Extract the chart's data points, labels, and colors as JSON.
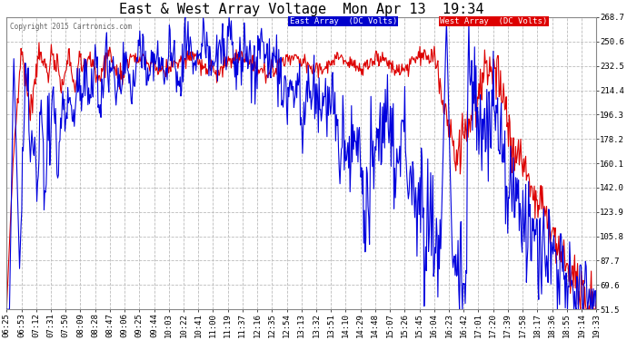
{
  "title": "East & West Array Voltage  Mon Apr 13  19:34",
  "copyright": "Copyright 2015 Cartronics.com",
  "legend_east": "East Array  (DC Volts)",
  "legend_west": "West Array  (DC Volts)",
  "east_color": "#0000dd",
  "west_color": "#dd0000",
  "ylim": [
    51.5,
    268.7
  ],
  "yticks": [
    51.5,
    69.6,
    87.7,
    105.8,
    123.9,
    142.0,
    160.1,
    178.2,
    196.3,
    214.4,
    232.5,
    250.6,
    268.7
  ],
  "background_color": "#ffffff",
  "plot_bg": "#ffffff",
  "grid_color": "#bbbbbb",
  "title_fontsize": 11,
  "tick_fontsize": 6.5,
  "x_tick_labels": [
    "06:25",
    "06:53",
    "07:12",
    "07:31",
    "07:50",
    "08:09",
    "08:28",
    "08:47",
    "09:06",
    "09:25",
    "09:44",
    "10:03",
    "10:22",
    "10:41",
    "11:00",
    "11:19",
    "11:37",
    "12:16",
    "12:35",
    "12:54",
    "13:13",
    "13:32",
    "13:51",
    "14:10",
    "14:29",
    "14:48",
    "15:07",
    "15:26",
    "15:45",
    "16:04",
    "16:23",
    "16:42",
    "17:01",
    "17:20",
    "17:39",
    "17:58",
    "18:17",
    "18:36",
    "18:55",
    "19:14",
    "19:33"
  ],
  "num_points": 820
}
